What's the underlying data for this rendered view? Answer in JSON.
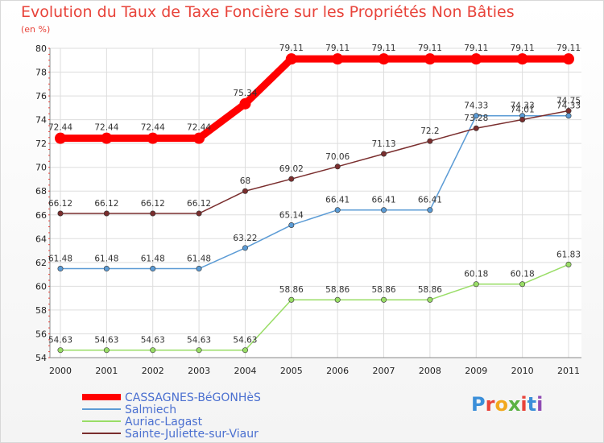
{
  "header": {
    "title": "Evolution du Taux de Taxe Foncière sur les Propriétés Non Bâties",
    "unit": "(en %)"
  },
  "logo": {
    "text": "Proxiti",
    "colors": [
      "#3b8fd9",
      "#e8433a",
      "#f2a81d",
      "#5bb143",
      "#e8433a",
      "#3b8fd9",
      "#8f4bb3"
    ]
  },
  "chart_data": {
    "type": "line",
    "title": "Evolution du Taux de Taxe Foncière sur les Propriétés Non Bâties",
    "ylabel": "(en %)",
    "xlabel": "",
    "ylim": [
      54,
      80
    ],
    "yticks": [
      "54",
      "56",
      "58",
      "60",
      "62",
      "64",
      "66",
      "68",
      "70",
      "72",
      "74",
      "76",
      "78",
      "80"
    ],
    "categories": [
      "2000",
      "2001",
      "2002",
      "2003",
      "2004",
      "2005",
      "2006",
      "2007",
      "2008",
      "2009",
      "2010",
      "2011"
    ],
    "grid": true,
    "legend_position": "bottom-left",
    "series": [
      {
        "name": "CASSAGNES-BéGONHèS",
        "color": "#ff0000",
        "values": [
          72.44,
          72.44,
          72.44,
          72.44,
          75.34,
          79.11,
          79.11,
          79.11,
          79.11,
          79.11,
          79.11,
          79.11
        ],
        "labels": [
          "72.44",
          "72.44",
          "72.44",
          "72.44",
          "75.34",
          "79.11",
          "79.11",
          "79.11",
          "79.11",
          "79.11",
          "79.11",
          "79.11"
        ]
      },
      {
        "name": "Salmiech",
        "color": "#5b9bd5",
        "values": [
          61.48,
          61.48,
          61.48,
          61.48,
          63.22,
          65.14,
          66.41,
          66.41,
          66.41,
          74.33,
          74.33,
          74.33
        ],
        "labels": [
          "61.48",
          "61.48",
          "61.48",
          "61.48",
          "63.22",
          "65.14",
          "66.41",
          "66.41",
          "66.41",
          "74.33",
          "74.33",
          "74.33"
        ]
      },
      {
        "name": "Auriac-Lagast",
        "color": "#99dd66",
        "values": [
          54.63,
          54.63,
          54.63,
          54.63,
          54.63,
          58.86,
          58.86,
          58.86,
          58.86,
          60.18,
          60.18,
          61.83
        ],
        "labels": [
          "54.63",
          "54.63",
          "54.63",
          "54.63",
          "54.63",
          "58.86",
          "58.86",
          "58.86",
          "58.86",
          "60.18",
          "60.18",
          "61.83"
        ]
      },
      {
        "name": "Sainte-Juliette-sur-Viaur",
        "color": "#7a2e2e",
        "values": [
          66.12,
          66.12,
          66.12,
          66.12,
          68,
          69.02,
          70.06,
          71.13,
          72.2,
          73.28,
          74.01,
          74.75
        ],
        "labels": [
          "66.12",
          "66.12",
          "66.12",
          "66.12",
          "68",
          "69.02",
          "70.06",
          "71.13",
          "72.2",
          "73.28",
          "74.01",
          "74.75"
        ]
      }
    ]
  }
}
